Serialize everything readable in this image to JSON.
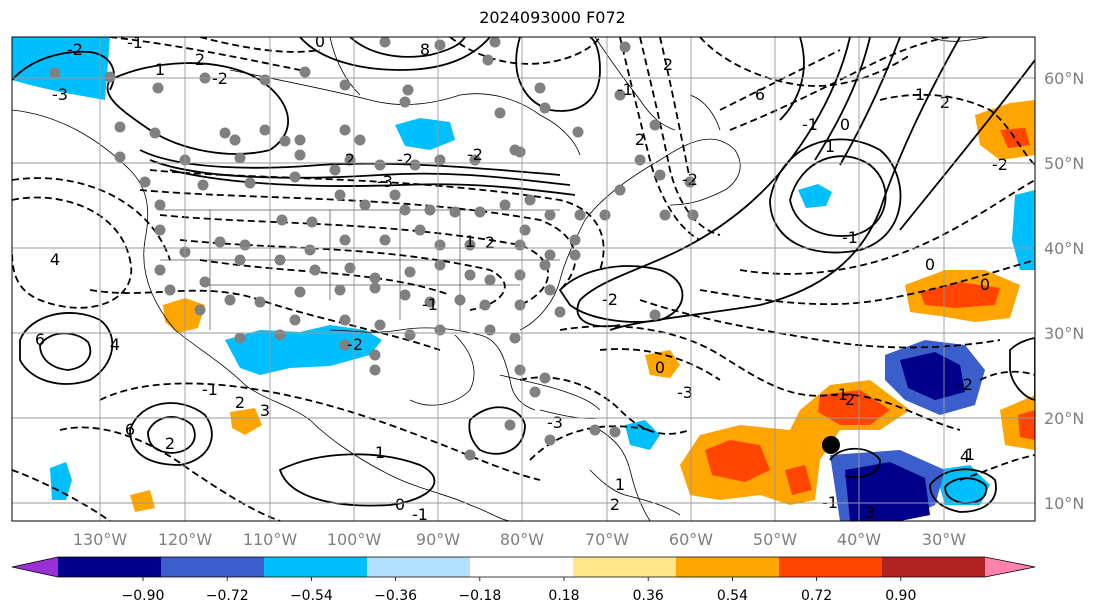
{
  "title": "2024093000 F072",
  "lon_labels": [
    "130°W",
    "120°W",
    "110°W",
    "100°W",
    "90°W",
    "80°W",
    "70°W",
    "60°W",
    "50°W",
    "40°W",
    "30°W"
  ],
  "lat_labels": [
    "60°N",
    "50°N",
    "40°N",
    "30°N",
    "20°N",
    "10°N"
  ],
  "colorbar": {
    "ticks": [
      "−0.90",
      "−0.72",
      "−0.54",
      "−0.36",
      "−0.18",
      "0.18",
      "0.36",
      "0.54",
      "0.72",
      "0.90"
    ],
    "colors": [
      "#9b30d8",
      "#00008b",
      "#3a5fcd",
      "#00bfff",
      "#b0e2ff",
      "#ffffff",
      "#ffe68a",
      "#ffa500",
      "#ff4500",
      "#b22222",
      "#ff82ab"
    ]
  },
  "contour_labels": [
    "-2",
    "-3",
    "-1",
    "1",
    "2",
    "-2",
    "0",
    "2",
    "-2",
    "-3",
    "1",
    "-1",
    "-2",
    "4",
    "6",
    "4",
    "6",
    "2",
    "-1",
    "2",
    "3",
    "-3",
    "-3",
    "-2",
    "2",
    "1",
    "0",
    "-1",
    "-1",
    "0",
    "1",
    "1",
    "2",
    "-2",
    "0",
    "0",
    "1",
    "-2",
    "-1",
    "2",
    "-1",
    "3",
    "0",
    "1",
    "-1",
    "2",
    "-2",
    "2",
    "2",
    "-2",
    "-1",
    "8",
    "6",
    "4"
  ],
  "colors": {
    "grid": "#999999",
    "dots": "#808080",
    "axis_text": "#7f7f7f"
  }
}
